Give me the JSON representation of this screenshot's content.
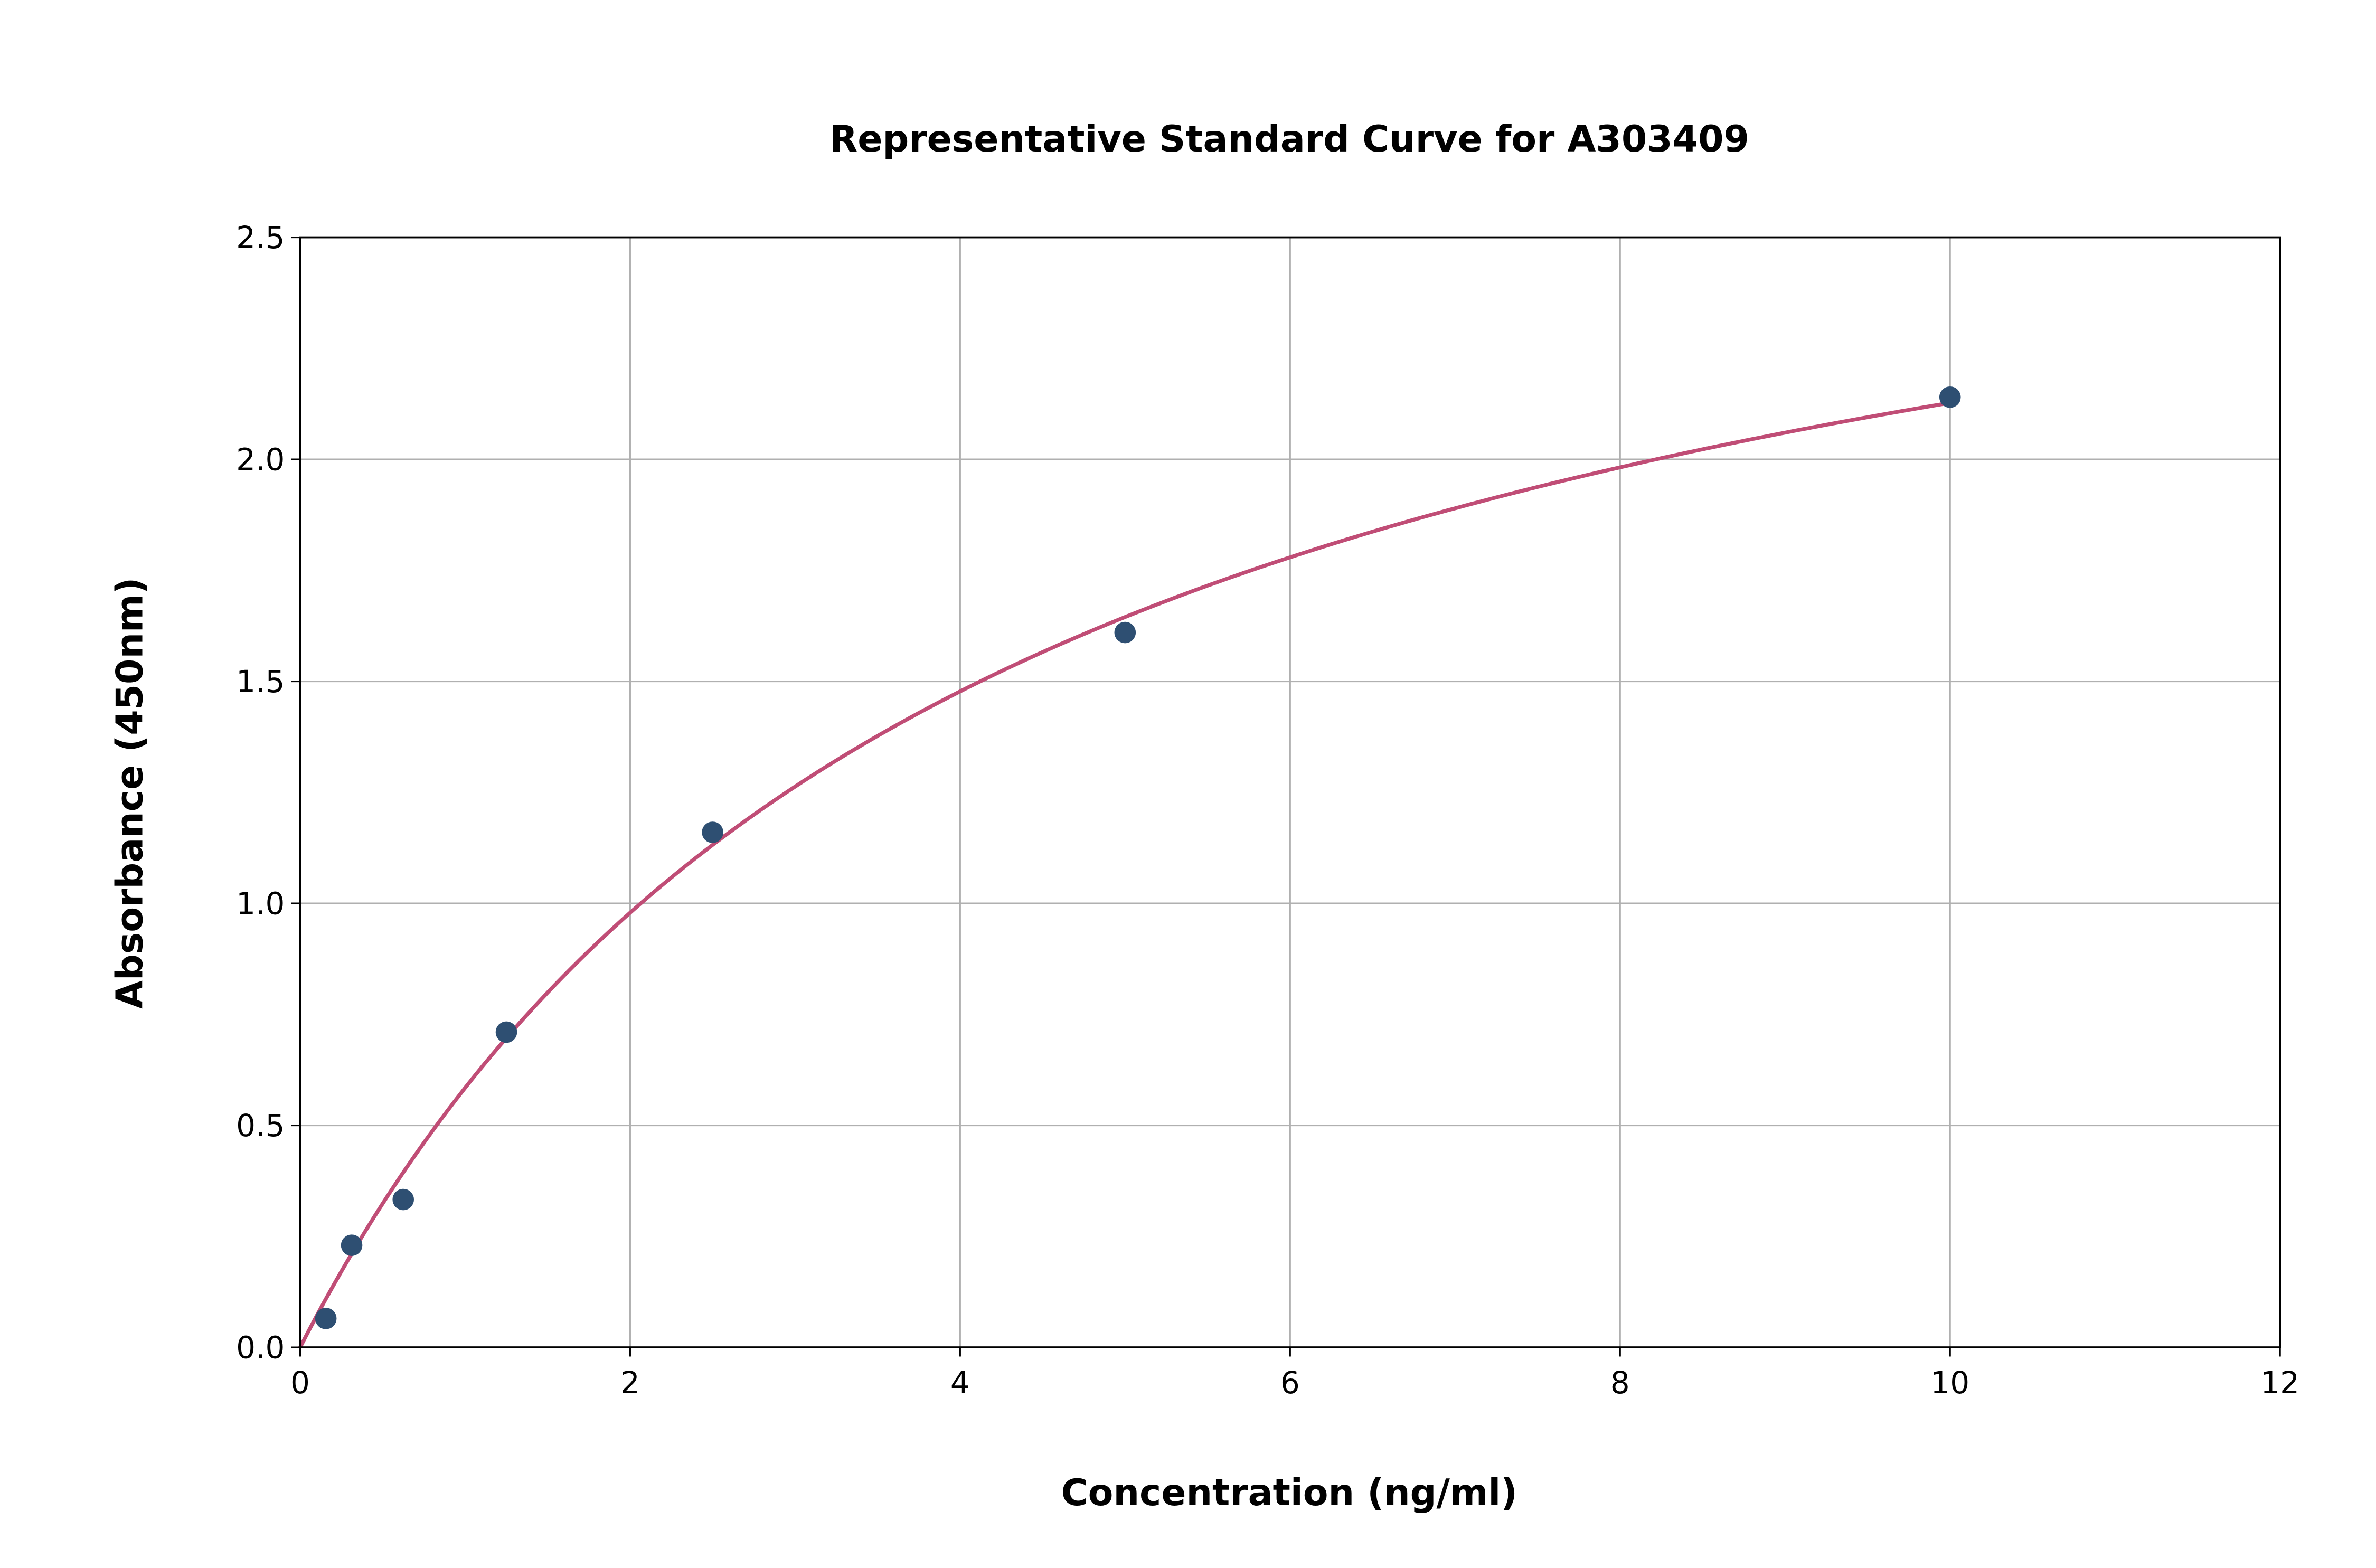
{
  "chart_data": {
    "type": "scatter",
    "title": "Representative Standard Curve for A303409",
    "xlabel": "Concentration (ng/ml)",
    "ylabel": "Absorbance (450nm)",
    "xlim": [
      0,
      12
    ],
    "ylim": [
      0,
      2.5
    ],
    "xticks": [
      "0",
      "2",
      "4",
      "6",
      "8",
      "10",
      "12"
    ],
    "yticks": [
      "0.0",
      "0.5",
      "1.0",
      "1.5",
      "2.0",
      "2.5"
    ],
    "grid": true,
    "points": {
      "x": [
        0.156,
        0.3125,
        0.625,
        1.25,
        2.5,
        5,
        10
      ],
      "y": [
        0.065,
        0.23,
        0.333,
        0.71,
        1.16,
        1.61,
        2.14
      ],
      "color": "#2e4f72"
    },
    "fit_curve": {
      "model": "y = a*x/(b+x)",
      "a": 3.01,
      "b": 4.15,
      "x_range": [
        0,
        10
      ],
      "color": "#c04d76"
    }
  }
}
